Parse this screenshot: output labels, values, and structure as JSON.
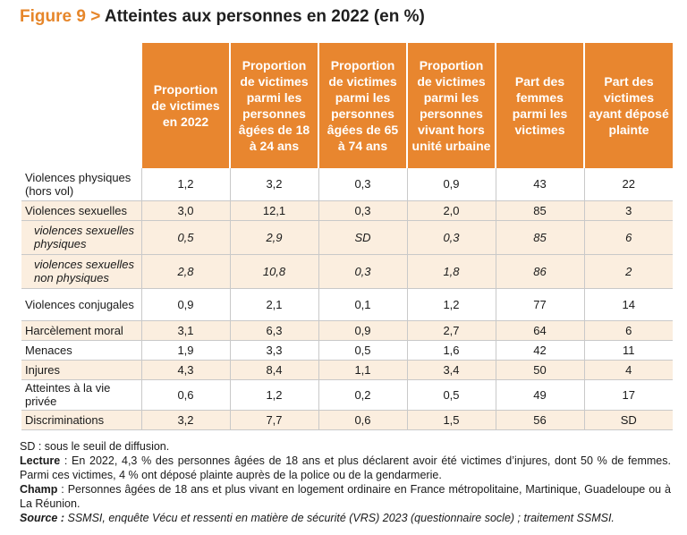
{
  "figure": {
    "number": "Figure 9",
    "separator": ">",
    "title": "Atteintes aux personnes en 2022 (en %)"
  },
  "table": {
    "headers": [
      "Proportion de victimes en 2022",
      "Proportion de victimes parmi les personnes âgées de 18 à 24 ans",
      "Proportion de victimes parmi les personnes âgées de 65 à 74 ans",
      "Proportion de victimes parmi les personnes vivant hors unité urbaine",
      "Part des femmes parmi les victimes",
      "Part des victimes ayant déposé plainte"
    ],
    "rows": [
      {
        "label": "Violences physiques (hors vol)",
        "values": [
          "1,2",
          "3,2",
          "0,3",
          "0,9",
          "43",
          "22"
        ],
        "italic": false
      },
      {
        "label": "Violences sexuelles",
        "values": [
          "3,0",
          "12,1",
          "0,3",
          "2,0",
          "85",
          "3"
        ],
        "italic": false
      },
      {
        "label": "violences sexuelles physiques",
        "values": [
          "0,5",
          "2,9",
          "SD",
          "0,3",
          "85",
          "6"
        ],
        "italic": true
      },
      {
        "label": "violences sexuelles non physiques",
        "values": [
          "2,8",
          "10,8",
          "0,3",
          "1,8",
          "86",
          "2"
        ],
        "italic": true
      },
      {
        "label": "Violences conjugales",
        "values": [
          "0,9",
          "2,1",
          "0,1",
          "1,2",
          "77",
          "14"
        ],
        "italic": false
      },
      {
        "label": "Harcèlement moral",
        "values": [
          "3,1",
          "6,3",
          "0,9",
          "2,7",
          "64",
          "6"
        ],
        "italic": false
      },
      {
        "label": "Menaces",
        "values": [
          "1,9",
          "3,3",
          "0,5",
          "1,6",
          "42",
          "11"
        ],
        "italic": false
      },
      {
        "label": "Injures",
        "values": [
          "4,3",
          "8,4",
          "1,1",
          "3,4",
          "50",
          "4"
        ],
        "italic": false
      },
      {
        "label": "Atteintes à la vie privée",
        "values": [
          "0,6",
          "1,2",
          "0,2",
          "0,5",
          "49",
          "17"
        ],
        "italic": false
      },
      {
        "label": "Discriminations",
        "values": [
          "3,2",
          "7,7",
          "0,6",
          "1,5",
          "56",
          "SD"
        ],
        "italic": false
      }
    ]
  },
  "notes": {
    "sd": "SD : sous le seuil de diffusion.",
    "lecture_label": "Lecture",
    "lecture_text": " : En 2022, 4,3 % des personnes âgées de 18 ans et plus déclarent avoir été victimes d’injures, dont 50 % de femmes. Parmi ces victimes, 4 % ont déposé plainte auprès de la police ou de la gendarmerie.",
    "champ_label": "Champ",
    "champ_text": " : Personnes âgées de 18 ans et plus vivant en logement ordinaire en France métropolitaine, Martinique, Guadeloupe ou à La Réunion.",
    "source_label": "Source :",
    "source_text": " SSMSI, enquête Vécu et ressenti en matière de sécurité (VRS) 2023 (questionnaire socle) ; traitement SSMSI."
  },
  "colors": {
    "accent": "#e8862f",
    "row_shade": "#fbeedf"
  }
}
